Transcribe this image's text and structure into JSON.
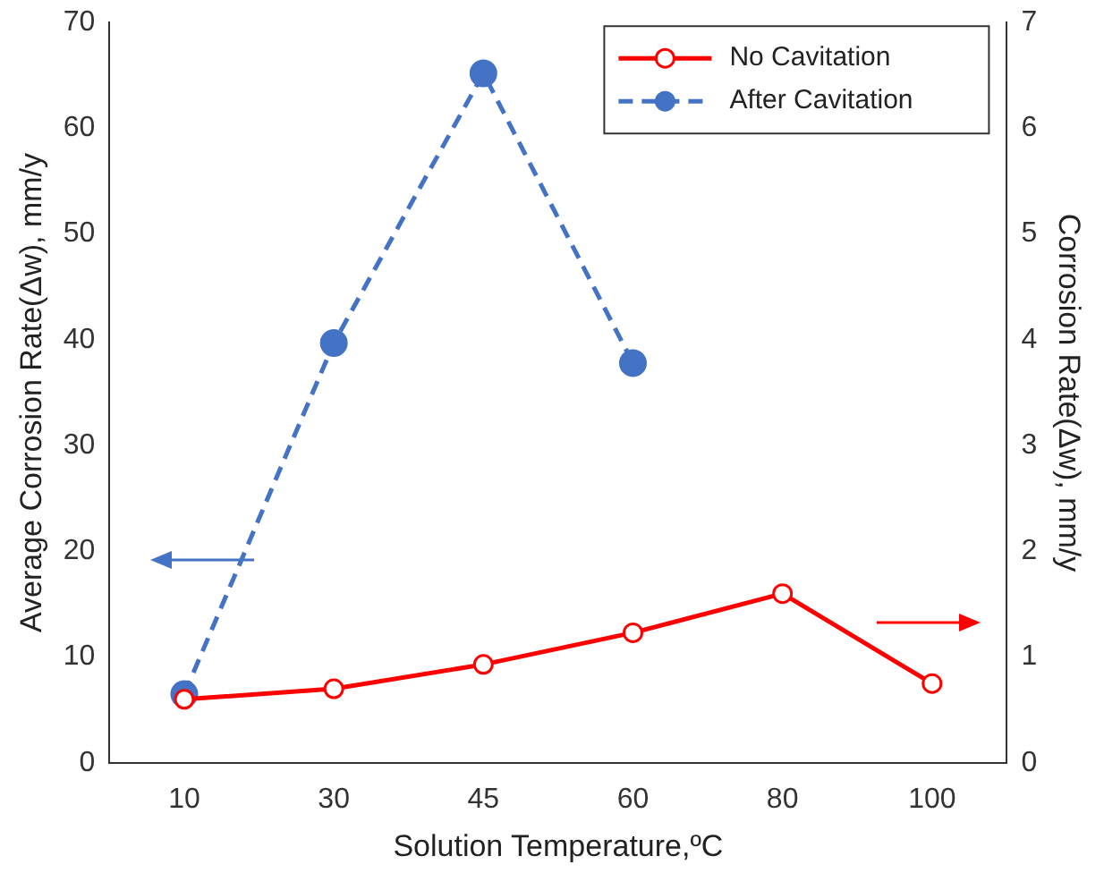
{
  "chart_data": {
    "type": "line",
    "xlabel": "Solution Temperature,ºC",
    "ylabel": "Average Corrosion Rate(Δw), mm/y",
    "y2label": "Corrosion Rate(Δw), mm/y",
    "categories": [
      "10",
      "30",
      "45",
      "60",
      "80",
      "100"
    ],
    "series": [
      {
        "name": "No Cavitation",
        "color": "#ff0000",
        "axis": "y2",
        "line_style": "solid",
        "marker": "circle",
        "values": [
          0.6,
          0.7,
          0.93,
          1.23,
          1.6,
          0.75
        ]
      },
      {
        "name": "After Cavitation",
        "color": "#4472c4",
        "line_style": "dashed",
        "marker": "circle",
        "values": [
          6.5,
          39.7,
          65.2,
          37.8,
          null,
          null
        ]
      }
    ],
    "ylim": [
      0,
      70
    ],
    "yticks": [
      0,
      10,
      20,
      30,
      40,
      50,
      60,
      70
    ],
    "y2lim": [
      0,
      7
    ],
    "y2ticks": [
      0,
      1,
      2,
      3,
      4,
      5,
      6,
      7
    ],
    "grid": false,
    "legend": "top right"
  }
}
